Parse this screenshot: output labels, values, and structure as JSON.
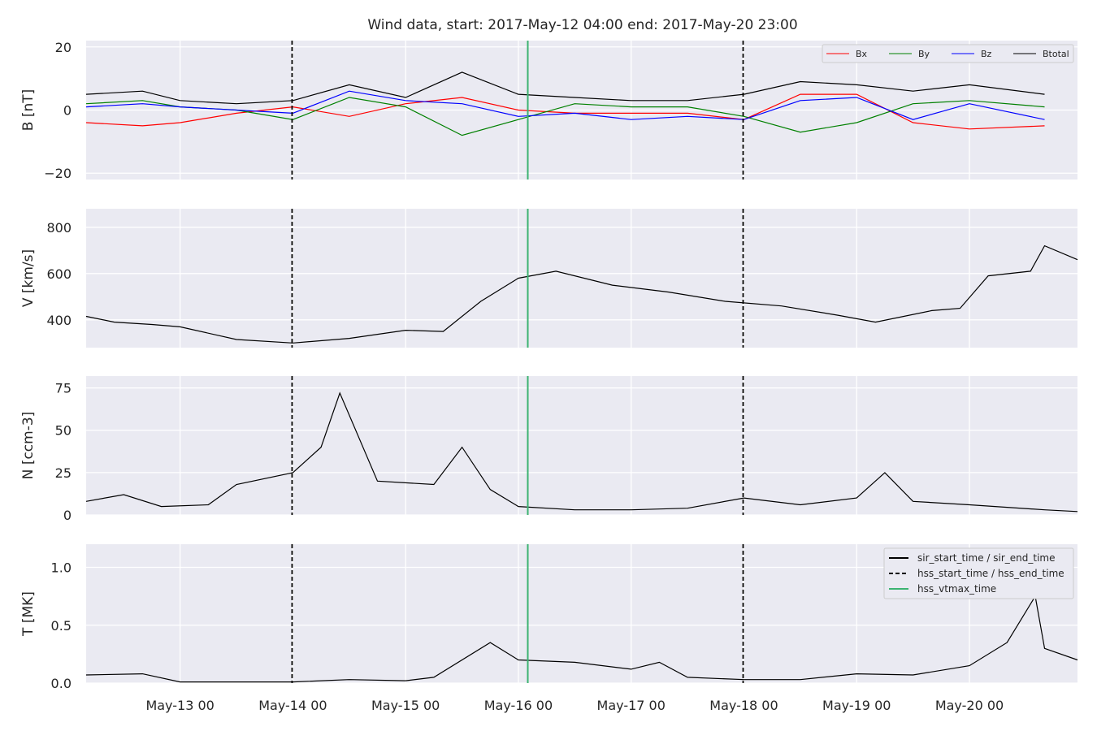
{
  "chart_data": {
    "type": "line",
    "title": "Wind data, start: 2017-May-12 04:00  end: 2017-May-20 23:00",
    "x_range": [
      "2017-05-12 04:00",
      "2017-05-20 23:00"
    ],
    "x_tick_labels": [
      "May-13 00",
      "May-14 00",
      "May-15 00",
      "May-16 00",
      "May-17 00",
      "May-18 00",
      "May-19 00",
      "May-20 00"
    ],
    "x_tick_times": [
      "2017-05-13 00:00",
      "2017-05-14 00:00",
      "2017-05-15 00:00",
      "2017-05-16 00:00",
      "2017-05-17 00:00",
      "2017-05-18 00:00",
      "2017-05-19 00:00",
      "2017-05-20 00:00"
    ],
    "grid": true,
    "markers": [
      {
        "name": "hss_start_time / hss_end_time",
        "style": "dashed",
        "color": "#000000",
        "times": [
          "2017-05-13 23:50",
          "2017-05-17 23:50"
        ]
      },
      {
        "name": "hss_vtmax_time",
        "style": "solid",
        "color": "#3cb371",
        "times": [
          "2017-05-16 02:00"
        ]
      }
    ],
    "legend_bottom": {
      "placement": "top-right",
      "entries": [
        "sir_start_time / sir_end_time",
        "hss_start_time / hss_end_time",
        "hss_vtmax_time"
      ]
    },
    "panels": [
      {
        "ylabel": "B [nT]",
        "ylim": [
          -22,
          22
        ],
        "yticks": [
          -20,
          0,
          20
        ],
        "yticklabels": [
          "−20",
          "0",
          "20"
        ],
        "legend": {
          "placement": "top-right",
          "entries": [
            "Bx",
            "By",
            "Bz",
            "Btotal"
          ]
        },
        "series": [
          {
            "name": "Bx",
            "color": "#ff0000",
            "x": [
              "2017-05-12 04:00",
              "2017-05-12 16:00",
              "2017-05-13 00:00",
              "2017-05-13 12:00",
              "2017-05-14 00:00",
              "2017-05-14 12:00",
              "2017-05-15 00:00",
              "2017-05-15 12:00",
              "2017-05-16 00:00",
              "2017-05-16 12:00",
              "2017-05-17 00:00",
              "2017-05-17 12:00",
              "2017-05-18 00:00",
              "2017-05-18 12:00",
              "2017-05-19 00:00",
              "2017-05-19 12:00",
              "2017-05-20 00:00",
              "2017-05-20 16:00"
            ],
            "y": [
              -4,
              -5,
              -4,
              -1,
              1,
              -2,
              2,
              4,
              0,
              -1,
              -1,
              -1,
              -3,
              5,
              5,
              -4,
              -6,
              -5
            ]
          },
          {
            "name": "By",
            "color": "#008000",
            "x": [
              "2017-05-12 04:00",
              "2017-05-12 16:00",
              "2017-05-13 00:00",
              "2017-05-13 12:00",
              "2017-05-14 00:00",
              "2017-05-14 12:00",
              "2017-05-15 00:00",
              "2017-05-15 12:00",
              "2017-05-16 00:00",
              "2017-05-16 12:00",
              "2017-05-17 00:00",
              "2017-05-17 12:00",
              "2017-05-18 00:00",
              "2017-05-18 12:00",
              "2017-05-19 00:00",
              "2017-05-19 12:00",
              "2017-05-20 00:00",
              "2017-05-20 16:00"
            ],
            "y": [
              2,
              3,
              1,
              0,
              -3,
              4,
              1,
              -8,
              -3,
              2,
              1,
              1,
              -2,
              -7,
              -4,
              2,
              3,
              1
            ]
          },
          {
            "name": "Bz",
            "color": "#0000ff",
            "x": [
              "2017-05-12 04:00",
              "2017-05-12 16:00",
              "2017-05-13 00:00",
              "2017-05-13 12:00",
              "2017-05-14 00:00",
              "2017-05-14 12:00",
              "2017-05-15 00:00",
              "2017-05-15 12:00",
              "2017-05-16 00:00",
              "2017-05-16 12:00",
              "2017-05-17 00:00",
              "2017-05-17 12:00",
              "2017-05-18 00:00",
              "2017-05-18 12:00",
              "2017-05-19 00:00",
              "2017-05-19 12:00",
              "2017-05-20 00:00",
              "2017-05-20 16:00"
            ],
            "y": [
              1,
              2,
              1,
              0,
              -1,
              6,
              3,
              2,
              -2,
              -1,
              -3,
              -2,
              -3,
              3,
              4,
              -3,
              2,
              -3
            ]
          },
          {
            "name": "Btotal",
            "color": "#000000",
            "x": [
              "2017-05-12 04:00",
              "2017-05-12 16:00",
              "2017-05-13 00:00",
              "2017-05-13 12:00",
              "2017-05-14 00:00",
              "2017-05-14 12:00",
              "2017-05-15 00:00",
              "2017-05-15 12:00",
              "2017-05-16 00:00",
              "2017-05-16 12:00",
              "2017-05-17 00:00",
              "2017-05-17 12:00",
              "2017-05-18 00:00",
              "2017-05-18 12:00",
              "2017-05-19 00:00",
              "2017-05-19 12:00",
              "2017-05-20 00:00",
              "2017-05-20 16:00"
            ],
            "y": [
              5,
              6,
              3,
              2,
              3,
              8,
              4,
              12,
              5,
              4,
              3,
              3,
              5,
              9,
              8,
              6,
              8,
              5
            ]
          }
        ]
      },
      {
        "ylabel": "V [km/s]",
        "ylim": [
          280,
          880
        ],
        "yticks": [
          400,
          600,
          800
        ],
        "yticklabels": [
          "400",
          "600",
          "800"
        ],
        "series": [
          {
            "name": "V",
            "color": "#000000",
            "x": [
              "2017-05-12 04:00",
              "2017-05-12 10:00",
              "2017-05-12 18:00",
              "2017-05-13 00:00",
              "2017-05-13 12:00",
              "2017-05-14 00:00",
              "2017-05-14 12:00",
              "2017-05-15 00:00",
              "2017-05-15 08:00",
              "2017-05-15 16:00",
              "2017-05-16 00:00",
              "2017-05-16 08:00",
              "2017-05-16 20:00",
              "2017-05-17 08:00",
              "2017-05-17 20:00",
              "2017-05-18 08:00",
              "2017-05-18 20:00",
              "2017-05-19 04:00",
              "2017-05-19 16:00",
              "2017-05-19 22:00",
              "2017-05-20 04:00",
              "2017-05-20 13:00",
              "2017-05-20 16:00",
              "2017-05-20 23:00"
            ],
            "y": [
              415,
              390,
              380,
              370,
              315,
              300,
              320,
              355,
              350,
              480,
              580,
              610,
              550,
              520,
              480,
              460,
              420,
              390,
              440,
              450,
              590,
              610,
              720,
              660
            ]
          }
        ]
      },
      {
        "ylabel": "N [ccm-3]",
        "ylim": [
          0,
          82
        ],
        "yticks": [
          0,
          25,
          50,
          75
        ],
        "yticklabels": [
          "0",
          "25",
          "50",
          "75"
        ],
        "series": [
          {
            "name": "N",
            "color": "#000000",
            "x": [
              "2017-05-12 04:00",
              "2017-05-12 12:00",
              "2017-05-12 20:00",
              "2017-05-13 06:00",
              "2017-05-13 12:00",
              "2017-05-14 00:00",
              "2017-05-14 06:00",
              "2017-05-14 10:00",
              "2017-05-14 18:00",
              "2017-05-15 06:00",
              "2017-05-15 12:00",
              "2017-05-15 18:00",
              "2017-05-16 00:00",
              "2017-05-16 12:00",
              "2017-05-17 00:00",
              "2017-05-17 12:00",
              "2017-05-18 00:00",
              "2017-05-18 12:00",
              "2017-05-19 00:00",
              "2017-05-19 06:00",
              "2017-05-19 12:00",
              "2017-05-20 00:00",
              "2017-05-20 16:00",
              "2017-05-20 23:00"
            ],
            "y": [
              8,
              12,
              5,
              6,
              18,
              25,
              40,
              72,
              20,
              18,
              40,
              15,
              5,
              3,
              3,
              4,
              10,
              6,
              10,
              25,
              8,
              6,
              3,
              2
            ]
          }
        ]
      },
      {
        "ylabel": "T [MK]",
        "ylim": [
          0,
          1.2
        ],
        "yticks": [
          0,
          0.5,
          1.0
        ],
        "yticklabels": [
          "0.0",
          "0.5",
          "1.0"
        ],
        "series": [
          {
            "name": "T",
            "color": "#000000",
            "x": [
              "2017-05-12 04:00",
              "2017-05-12 16:00",
              "2017-05-13 00:00",
              "2017-05-13 12:00",
              "2017-05-14 00:00",
              "2017-05-14 12:00",
              "2017-05-15 00:00",
              "2017-05-15 06:00",
              "2017-05-15 18:00",
              "2017-05-16 00:00",
              "2017-05-16 12:00",
              "2017-05-17 00:00",
              "2017-05-17 06:00",
              "2017-05-17 12:00",
              "2017-05-18 00:00",
              "2017-05-18 12:00",
              "2017-05-19 00:00",
              "2017-05-19 12:00",
              "2017-05-20 00:00",
              "2017-05-20 08:00",
              "2017-05-20 14:00",
              "2017-05-20 16:00",
              "2017-05-20 23:00"
            ],
            "y": [
              0.07,
              0.08,
              0.01,
              0.01,
              0.01,
              0.03,
              0.02,
              0.05,
              0.35,
              0.2,
              0.18,
              0.12,
              0.18,
              0.05,
              0.03,
              0.03,
              0.08,
              0.07,
              0.15,
              0.35,
              0.75,
              0.3,
              0.2
            ]
          }
        ]
      }
    ]
  }
}
